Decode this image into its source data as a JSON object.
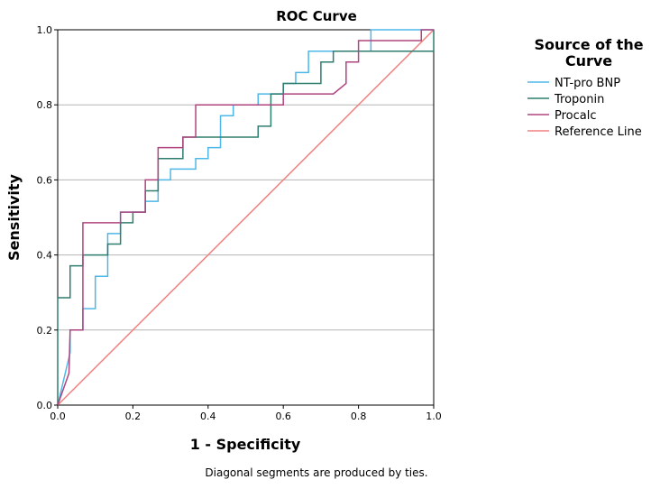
{
  "chart_data": {
    "type": "line",
    "title": "ROC Curve",
    "xlabel": "1 - Specificity",
    "ylabel": "Sensitivity",
    "xlim": [
      0,
      1
    ],
    "ylim": [
      0,
      1
    ],
    "x_ticks": [
      "0.0",
      "0.2",
      "0.4",
      "0.6",
      "0.8",
      "1.0"
    ],
    "y_ticks": [
      "0.0",
      "0.2",
      "0.4",
      "0.6",
      "0.8",
      "1.0"
    ],
    "grid": "horizontal",
    "legend": {
      "title_line1": "Source of the",
      "title_line2": "Curve",
      "placement": "right"
    },
    "footnote": "Diagonal segments are produced by ties.",
    "series": [
      {
        "name": "NT-pro BNP",
        "color": "#4db8e8",
        "points": [
          [
            0,
            0
          ],
          [
            0.033,
            0.14
          ],
          [
            0.033,
            0.2
          ],
          [
            0.067,
            0.2
          ],
          [
            0.067,
            0.257
          ],
          [
            0.1,
            0.257
          ],
          [
            0.1,
            0.343
          ],
          [
            0.133,
            0.343
          ],
          [
            0.133,
            0.457
          ],
          [
            0.167,
            0.457
          ],
          [
            0.167,
            0.514
          ],
          [
            0.233,
            0.514
          ],
          [
            0.233,
            0.543
          ],
          [
            0.267,
            0.543
          ],
          [
            0.267,
            0.6
          ],
          [
            0.3,
            0.6
          ],
          [
            0.3,
            0.629
          ],
          [
            0.367,
            0.629
          ],
          [
            0.367,
            0.657
          ],
          [
            0.4,
            0.657
          ],
          [
            0.4,
            0.686
          ],
          [
            0.433,
            0.686
          ],
          [
            0.433,
            0.771
          ],
          [
            0.467,
            0.771
          ],
          [
            0.467,
            0.8
          ],
          [
            0.533,
            0.8
          ],
          [
            0.533,
            0.829
          ],
          [
            0.6,
            0.829
          ],
          [
            0.6,
            0.857
          ],
          [
            0.633,
            0.857
          ],
          [
            0.633,
            0.886
          ],
          [
            0.667,
            0.886
          ],
          [
            0.667,
            0.943
          ],
          [
            0.833,
            0.943
          ],
          [
            0.833,
            1.0
          ],
          [
            1.0,
            1.0
          ]
        ]
      },
      {
        "name": "Troponin",
        "color": "#2e7d6f",
        "points": [
          [
            0,
            0
          ],
          [
            0,
            0.286
          ],
          [
            0.033,
            0.286
          ],
          [
            0.033,
            0.371
          ],
          [
            0.067,
            0.371
          ],
          [
            0.067,
            0.4
          ],
          [
            0.133,
            0.4
          ],
          [
            0.133,
            0.429
          ],
          [
            0.167,
            0.429
          ],
          [
            0.167,
            0.486
          ],
          [
            0.2,
            0.486
          ],
          [
            0.2,
            0.514
          ],
          [
            0.233,
            0.514
          ],
          [
            0.233,
            0.571
          ],
          [
            0.267,
            0.571
          ],
          [
            0.267,
            0.657
          ],
          [
            0.333,
            0.657
          ],
          [
            0.333,
            0.714
          ],
          [
            0.533,
            0.714
          ],
          [
            0.533,
            0.743
          ],
          [
            0.567,
            0.743
          ],
          [
            0.567,
            0.829
          ],
          [
            0.6,
            0.829
          ],
          [
            0.6,
            0.857
          ],
          [
            0.7,
            0.857
          ],
          [
            0.7,
            0.914
          ],
          [
            0.733,
            0.914
          ],
          [
            0.733,
            0.943
          ],
          [
            1.0,
            0.943
          ],
          [
            1.0,
            1.0
          ]
        ]
      },
      {
        "name": "Procalc",
        "color": "#b0447f",
        "points": [
          [
            0,
            0
          ],
          [
            0.03,
            0.085
          ],
          [
            0.033,
            0.2
          ],
          [
            0.067,
            0.2
          ],
          [
            0.067,
            0.486
          ],
          [
            0.167,
            0.486
          ],
          [
            0.167,
            0.514
          ],
          [
            0.233,
            0.514
          ],
          [
            0.233,
            0.6
          ],
          [
            0.267,
            0.6
          ],
          [
            0.267,
            0.686
          ],
          [
            0.333,
            0.686
          ],
          [
            0.333,
            0.714
          ],
          [
            0.367,
            0.714
          ],
          [
            0.367,
            0.8
          ],
          [
            0.6,
            0.8
          ],
          [
            0.6,
            0.829
          ],
          [
            0.733,
            0.829
          ],
          [
            0.767,
            0.857
          ],
          [
            0.767,
            0.914
          ],
          [
            0.8,
            0.914
          ],
          [
            0.8,
            0.971
          ],
          [
            0.967,
            0.971
          ],
          [
            0.967,
            1.0
          ],
          [
            1.0,
            1.0
          ]
        ]
      },
      {
        "name": "Reference Line",
        "color": "#f08080",
        "points": [
          [
            0,
            0
          ],
          [
            1,
            1
          ]
        ]
      }
    ]
  }
}
